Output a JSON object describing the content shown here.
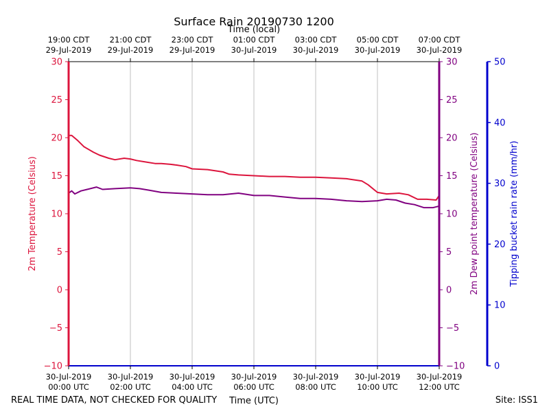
{
  "chart_data": {
    "type": "line",
    "title": "Surface Rain 20190730 1200",
    "top_axis_label": "Time (local)",
    "xlabel": "Time (UTC)",
    "footer_left": "REAL TIME DATA, NOT CHECKED FOR QUALITY",
    "footer_right": "Site: ISS1",
    "x_range_hours": [
      0,
      12
    ],
    "bottom_ticks": [
      {
        "h": 0,
        "line1": "30-Jul-2019",
        "line2": "00:00 UTC"
      },
      {
        "h": 2,
        "line1": "30-Jul-2019",
        "line2": "02:00 UTC"
      },
      {
        "h": 4,
        "line1": "30-Jul-2019",
        "line2": "04:00 UTC"
      },
      {
        "h": 6,
        "line1": "30-Jul-2019",
        "line2": "06:00 UTC"
      },
      {
        "h": 8,
        "line1": "30-Jul-2019",
        "line2": "08:00 UTC"
      },
      {
        "h": 10,
        "line1": "30-Jul-2019",
        "line2": "10:00 UTC"
      },
      {
        "h": 12,
        "line1": "30-Jul-2019",
        "line2": "12:00 UTC"
      }
    ],
    "top_ticks": [
      {
        "h": 0,
        "line1": "19:00 CDT",
        "line2": "29-Jul-2019"
      },
      {
        "h": 2,
        "line1": "21:00 CDT",
        "line2": "29-Jul-2019"
      },
      {
        "h": 4,
        "line1": "23:00 CDT",
        "line2": "29-Jul-2019"
      },
      {
        "h": 6,
        "line1": "01:00 CDT",
        "line2": "30-Jul-2019"
      },
      {
        "h": 8,
        "line1": "03:00 CDT",
        "line2": "30-Jul-2019"
      },
      {
        "h": 10,
        "line1": "05:00 CDT",
        "line2": "30-Jul-2019"
      },
      {
        "h": 12,
        "line1": "07:00 CDT",
        "line2": "30-Jul-2019"
      }
    ],
    "left_axis": {
      "label": "2m Temperature (Celsius)",
      "color": "#dc143c",
      "ylim": [
        -10,
        30
      ],
      "ticks": [
        -10,
        -5,
        0,
        5,
        10,
        15,
        20,
        25,
        30
      ],
      "tick_labels": [
        "−10",
        "−5",
        "0",
        "5",
        "10",
        "15",
        "20",
        "25",
        "30"
      ]
    },
    "right_axis_1": {
      "label": "2m Dew point temperature (Celsius)",
      "color": "#800080",
      "ylim": [
        -10,
        30
      ],
      "ticks": [
        -10,
        -5,
        0,
        5,
        10,
        15,
        20,
        25,
        30
      ],
      "tick_labels": [
        "−10",
        "−5",
        "0",
        "5",
        "10",
        "15",
        "20",
        "25",
        "30"
      ]
    },
    "right_axis_2": {
      "label": "Tipping bucket rain rate (mm/hr)",
      "color": "#0000cd",
      "ylim": [
        0,
        50
      ],
      "ticks": [
        0,
        10,
        20,
        30,
        40,
        50
      ],
      "tick_labels": [
        "0",
        "10",
        "20",
        "30",
        "40",
        "50"
      ]
    },
    "grid": "vertical",
    "series": [
      {
        "axis": "left",
        "color": "#dc143c",
        "x": [
          0,
          0.1,
          0.3,
          0.5,
          0.8,
          1.0,
          1.3,
          1.5,
          1.8,
          2.0,
          2.2,
          2.5,
          2.8,
          3.0,
          3.3,
          3.5,
          3.8,
          4.0,
          4.5,
          5.0,
          5.2,
          5.5,
          6.0,
          6.5,
          7.0,
          7.5,
          8.0,
          8.5,
          9.0,
          9.5,
          9.7,
          10.0,
          10.3,
          10.7,
          11.0,
          11.3,
          11.6,
          11.9,
          12.0
        ],
        "values": [
          20.3,
          20.3,
          19.6,
          18.8,
          18.1,
          17.7,
          17.3,
          17.1,
          17.3,
          17.2,
          17.0,
          16.8,
          16.6,
          16.6,
          16.5,
          16.4,
          16.2,
          15.9,
          15.8,
          15.5,
          15.2,
          15.1,
          15.0,
          14.9,
          14.9,
          14.8,
          14.8,
          14.7,
          14.6,
          14.3,
          13.8,
          12.8,
          12.6,
          12.7,
          12.5,
          11.9,
          11.9,
          11.8,
          12.4
        ]
      },
      {
        "axis": "left",
        "color": "#800080",
        "x": [
          0,
          0.1,
          0.2,
          0.4,
          0.6,
          0.9,
          1.1,
          1.5,
          2.0,
          2.3,
          2.6,
          3.0,
          3.5,
          4.0,
          4.5,
          5.0,
          5.5,
          6.0,
          6.5,
          7.0,
          7.5,
          8.0,
          8.5,
          9.0,
          9.5,
          10.0,
          10.3,
          10.6,
          10.9,
          11.2,
          11.5,
          11.8,
          12.0
        ],
        "values": [
          12.7,
          13.0,
          12.6,
          13.0,
          13.2,
          13.5,
          13.2,
          13.3,
          13.4,
          13.3,
          13.1,
          12.8,
          12.7,
          12.6,
          12.5,
          12.5,
          12.7,
          12.4,
          12.4,
          12.2,
          12.0,
          12.0,
          11.9,
          11.7,
          11.6,
          11.7,
          11.9,
          11.8,
          11.4,
          11.2,
          10.8,
          10.8,
          11.0
        ]
      }
    ]
  }
}
